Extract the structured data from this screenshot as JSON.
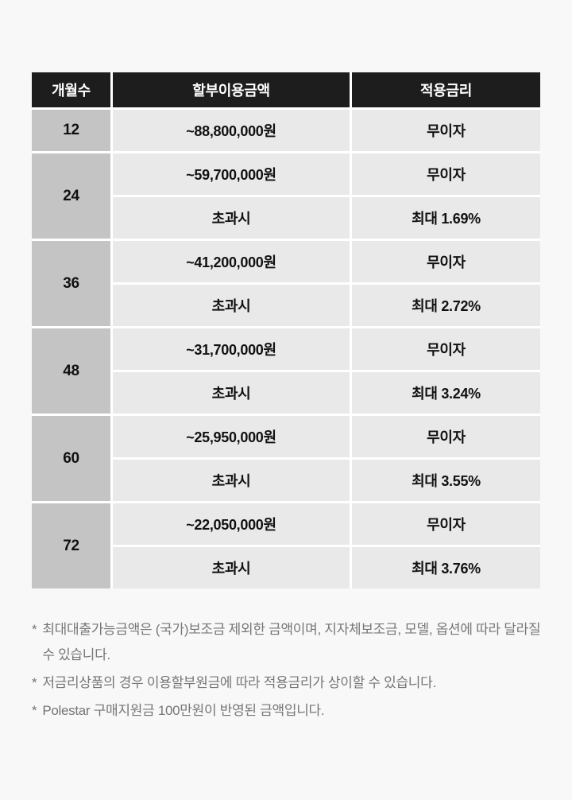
{
  "colors": {
    "page_background": "#f8f8f8",
    "header_background": "#1d1d1d",
    "header_text": "#ffffff",
    "months_cell_background": "#c4c4c4",
    "cell_background": "#e9e9e9",
    "cell_text": "#111111",
    "cell_gap": "#ffffff",
    "footnote_text": "#767676"
  },
  "table": {
    "headers": [
      "개월수",
      "할부이용금액",
      "적용금리"
    ],
    "groups": [
      {
        "months": "12",
        "rows": [
          {
            "amount": "~88,800,000원",
            "rate": "무이자"
          }
        ]
      },
      {
        "months": "24",
        "rows": [
          {
            "amount": "~59,700,000원",
            "rate": "무이자"
          },
          {
            "amount": "초과시",
            "rate": "최대 1.69%"
          }
        ]
      },
      {
        "months": "36",
        "rows": [
          {
            "amount": "~41,200,000원",
            "rate": "무이자"
          },
          {
            "amount": "초과시",
            "rate": "최대 2.72%"
          }
        ]
      },
      {
        "months": "48",
        "rows": [
          {
            "amount": "~31,700,000원",
            "rate": "무이자"
          },
          {
            "amount": "초과시",
            "rate": "최대 3.24%"
          }
        ]
      },
      {
        "months": "60",
        "rows": [
          {
            "amount": "~25,950,000원",
            "rate": "무이자"
          },
          {
            "amount": "초과시",
            "rate": "최대 3.55%"
          }
        ]
      },
      {
        "months": "72",
        "rows": [
          {
            "amount": "~22,050,000원",
            "rate": "무이자"
          },
          {
            "amount": "초과시",
            "rate": "최대 3.76%"
          }
        ]
      }
    ]
  },
  "footnote_marker": "*",
  "footnotes": [
    "최대대출가능금액은 (국가)보조금 제외한 금액이며, 지자체보조금, 모델, 옵션에 따라 달라질 수 있습니다.",
    "저금리상품의 경우 이용할부원금에 따라 적용금리가 상이할 수 있습니다.",
    "Polestar 구매지원금 100만원이 반영된 금액입니다."
  ]
}
